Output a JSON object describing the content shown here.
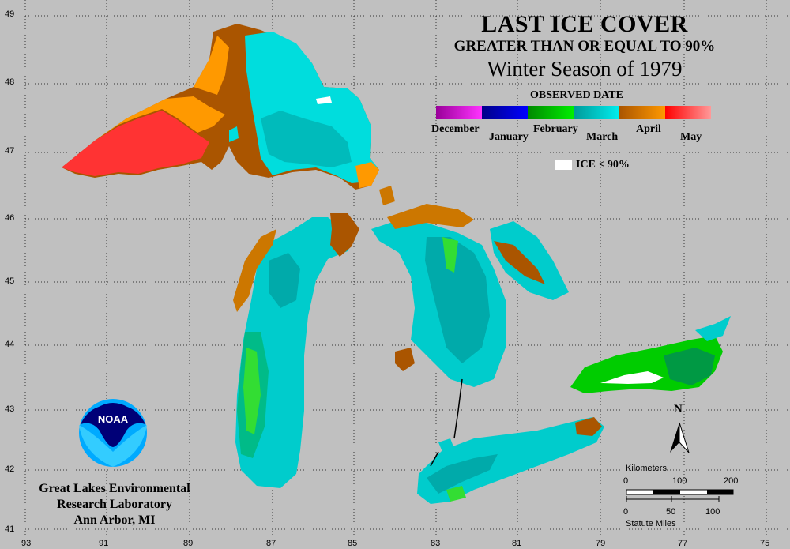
{
  "title": {
    "line1": "LAST ICE COVER",
    "line2": "GREATER THAN OR EQUAL TO 90%",
    "line3": "Winter Season of 1979"
  },
  "legend": {
    "header": "OBSERVED DATE",
    "months": [
      {
        "label": "December",
        "color1": "#990099",
        "color2": "#ff33ff"
      },
      {
        "label": "January",
        "color1": "#000088",
        "color2": "#0000ff"
      },
      {
        "label": "February",
        "color1": "#008800",
        "color2": "#00ee00"
      },
      {
        "label": "March",
        "color1": "#009999",
        "color2": "#00eeee"
      },
      {
        "label": "April",
        "color1": "#aa5500",
        "color2": "#ff9900"
      },
      {
        "label": "May",
        "color1": "#ff0000",
        "color2": "#ff9999"
      }
    ],
    "no_ice_label": "ICE < 90%"
  },
  "axes": {
    "lat": [
      "49",
      "48",
      "47",
      "46",
      "45",
      "44",
      "43",
      "42",
      "41"
    ],
    "lon": [
      "93",
      "91",
      "89",
      "87",
      "85",
      "83",
      "81",
      "79",
      "77",
      "75"
    ]
  },
  "lab": {
    "line1": "Great Lakes Environmental",
    "line2": "Research Laboratory",
    "line3": "Ann Arbor, MI",
    "logo_text": "NOAA"
  },
  "north_label": "N",
  "scale": {
    "km_label": "Kilometers",
    "km_ticks": [
      "0",
      "100",
      "200"
    ],
    "mi_label": "Statute Miles",
    "mi_ticks": [
      "0",
      "50",
      "100"
    ]
  },
  "colors": {
    "background": "#c0c0c0",
    "grid": "#333333"
  }
}
